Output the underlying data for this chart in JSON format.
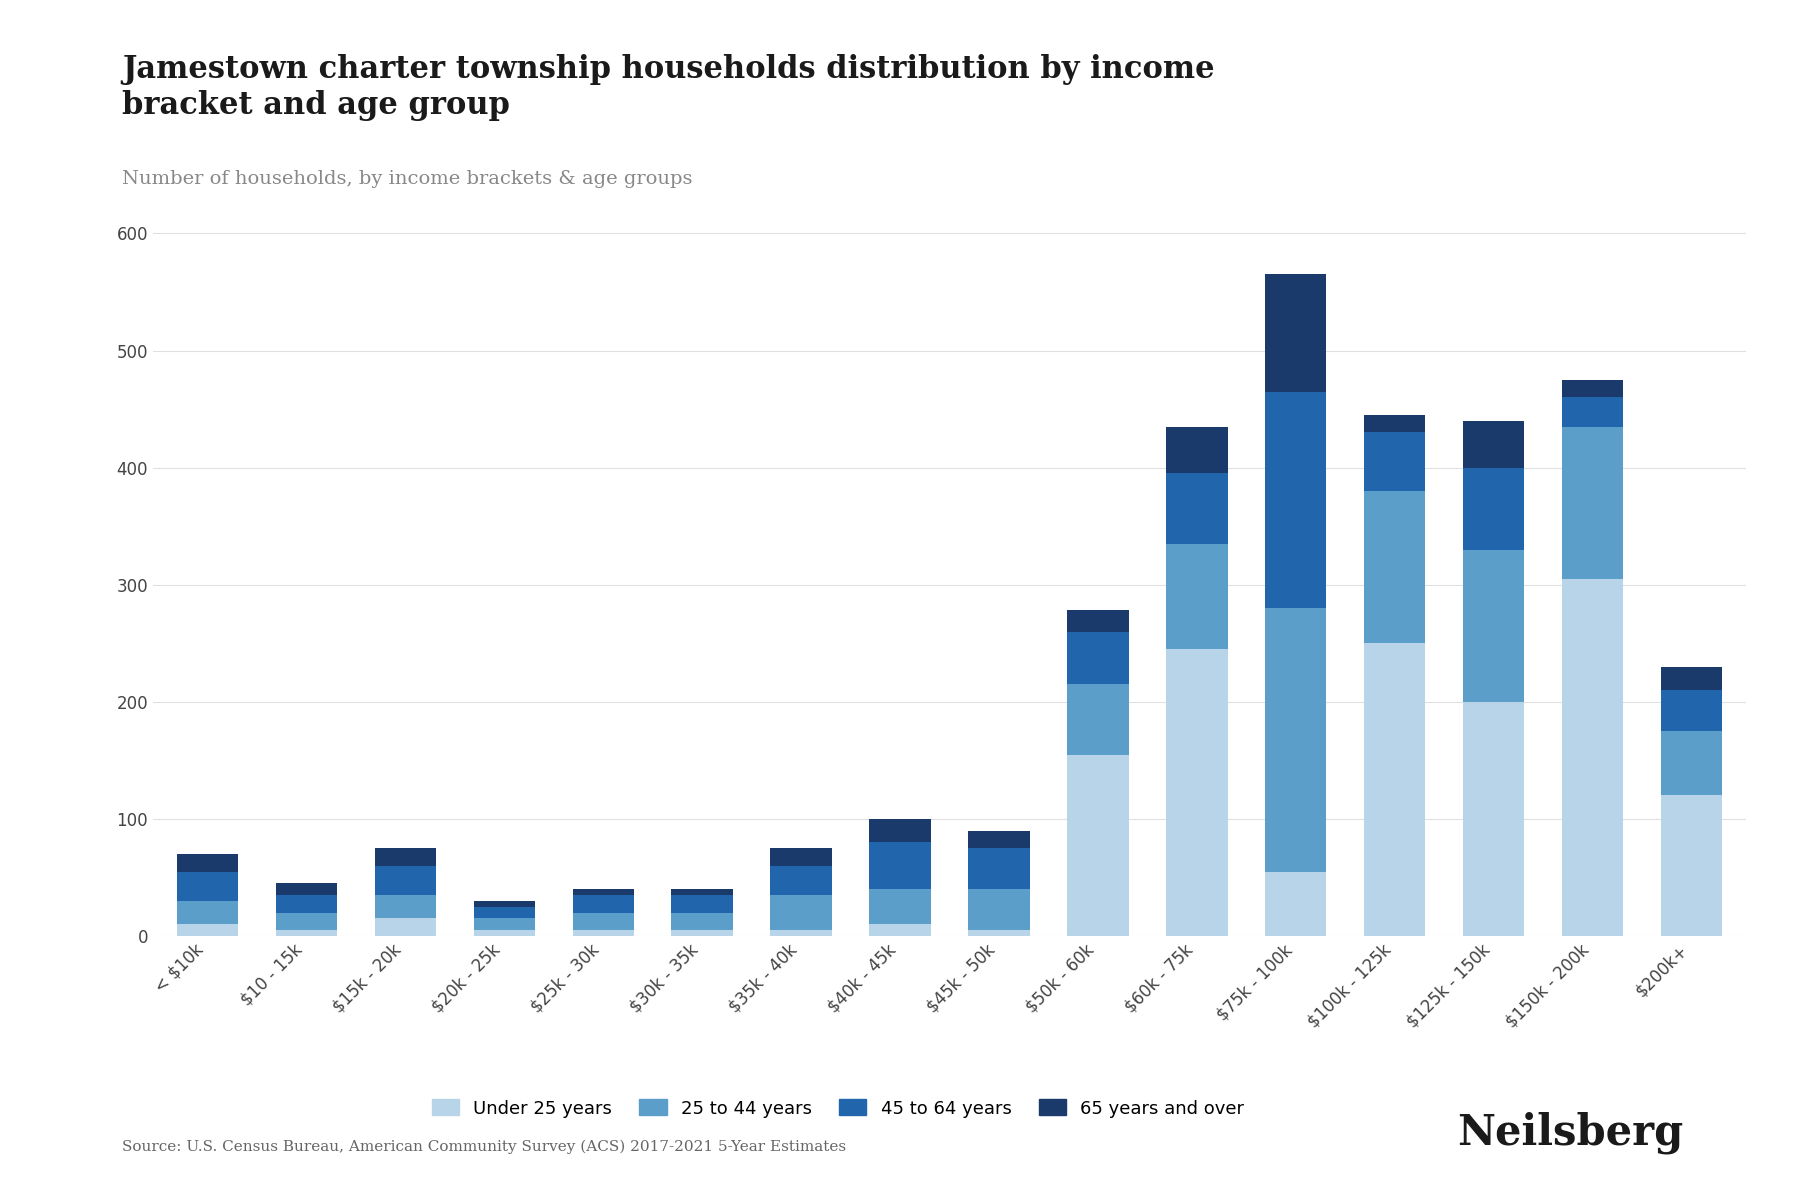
{
  "title": "Jamestown charter township households distribution by income\nbracket and age group",
  "subtitle": "Number of households, by income brackets & age groups",
  "source": "Source: U.S. Census Bureau, American Community Survey (ACS) 2017-2021 5-Year Estimates",
  "categories": [
    "< $10k",
    "$10 - 15k",
    "$15k - 20k",
    "$20k - 25k",
    "$25k - 30k",
    "$30k - 35k",
    "$35k - 40k",
    "$40k - 45k",
    "$45k - 50k",
    "$50k - 60k",
    "$60k - 75k",
    "$75k - 100k",
    "$100k - 125k",
    "$125k - 150k",
    "$150k - 200k",
    "$200k+"
  ],
  "series": {
    "Under 25 years": [
      10,
      5,
      15,
      5,
      5,
      5,
      5,
      10,
      5,
      155,
      245,
      55,
      250,
      200,
      305,
      120
    ],
    "25 to 44 years": [
      20,
      15,
      20,
      10,
      15,
      15,
      30,
      30,
      35,
      60,
      90,
      225,
      130,
      130,
      130,
      55
    ],
    "45 to 64 years": [
      25,
      15,
      25,
      10,
      15,
      15,
      25,
      40,
      35,
      45,
      60,
      185,
      50,
      70,
      25,
      35
    ],
    "65 years and over": [
      15,
      10,
      15,
      5,
      5,
      5,
      15,
      20,
      15,
      18,
      40,
      100,
      15,
      40,
      15,
      20
    ]
  },
  "colors": {
    "Under 25 years": "#b8d4e8",
    "25 to 44 years": "#5b9ec9",
    "45 to 64 years": "#2166ac",
    "65 years and over": "#1a3a6b"
  },
  "ylim": [
    0,
    620
  ],
  "yticks": [
    0,
    100,
    200,
    300,
    400,
    500,
    600
  ],
  "background_color": "#ffffff",
  "grid_color": "#e0e0e0",
  "title_fontsize": 22,
  "subtitle_fontsize": 14,
  "tick_fontsize": 12,
  "legend_fontsize": 13,
  "source_fontsize": 11,
  "brand": "Neilsberg"
}
